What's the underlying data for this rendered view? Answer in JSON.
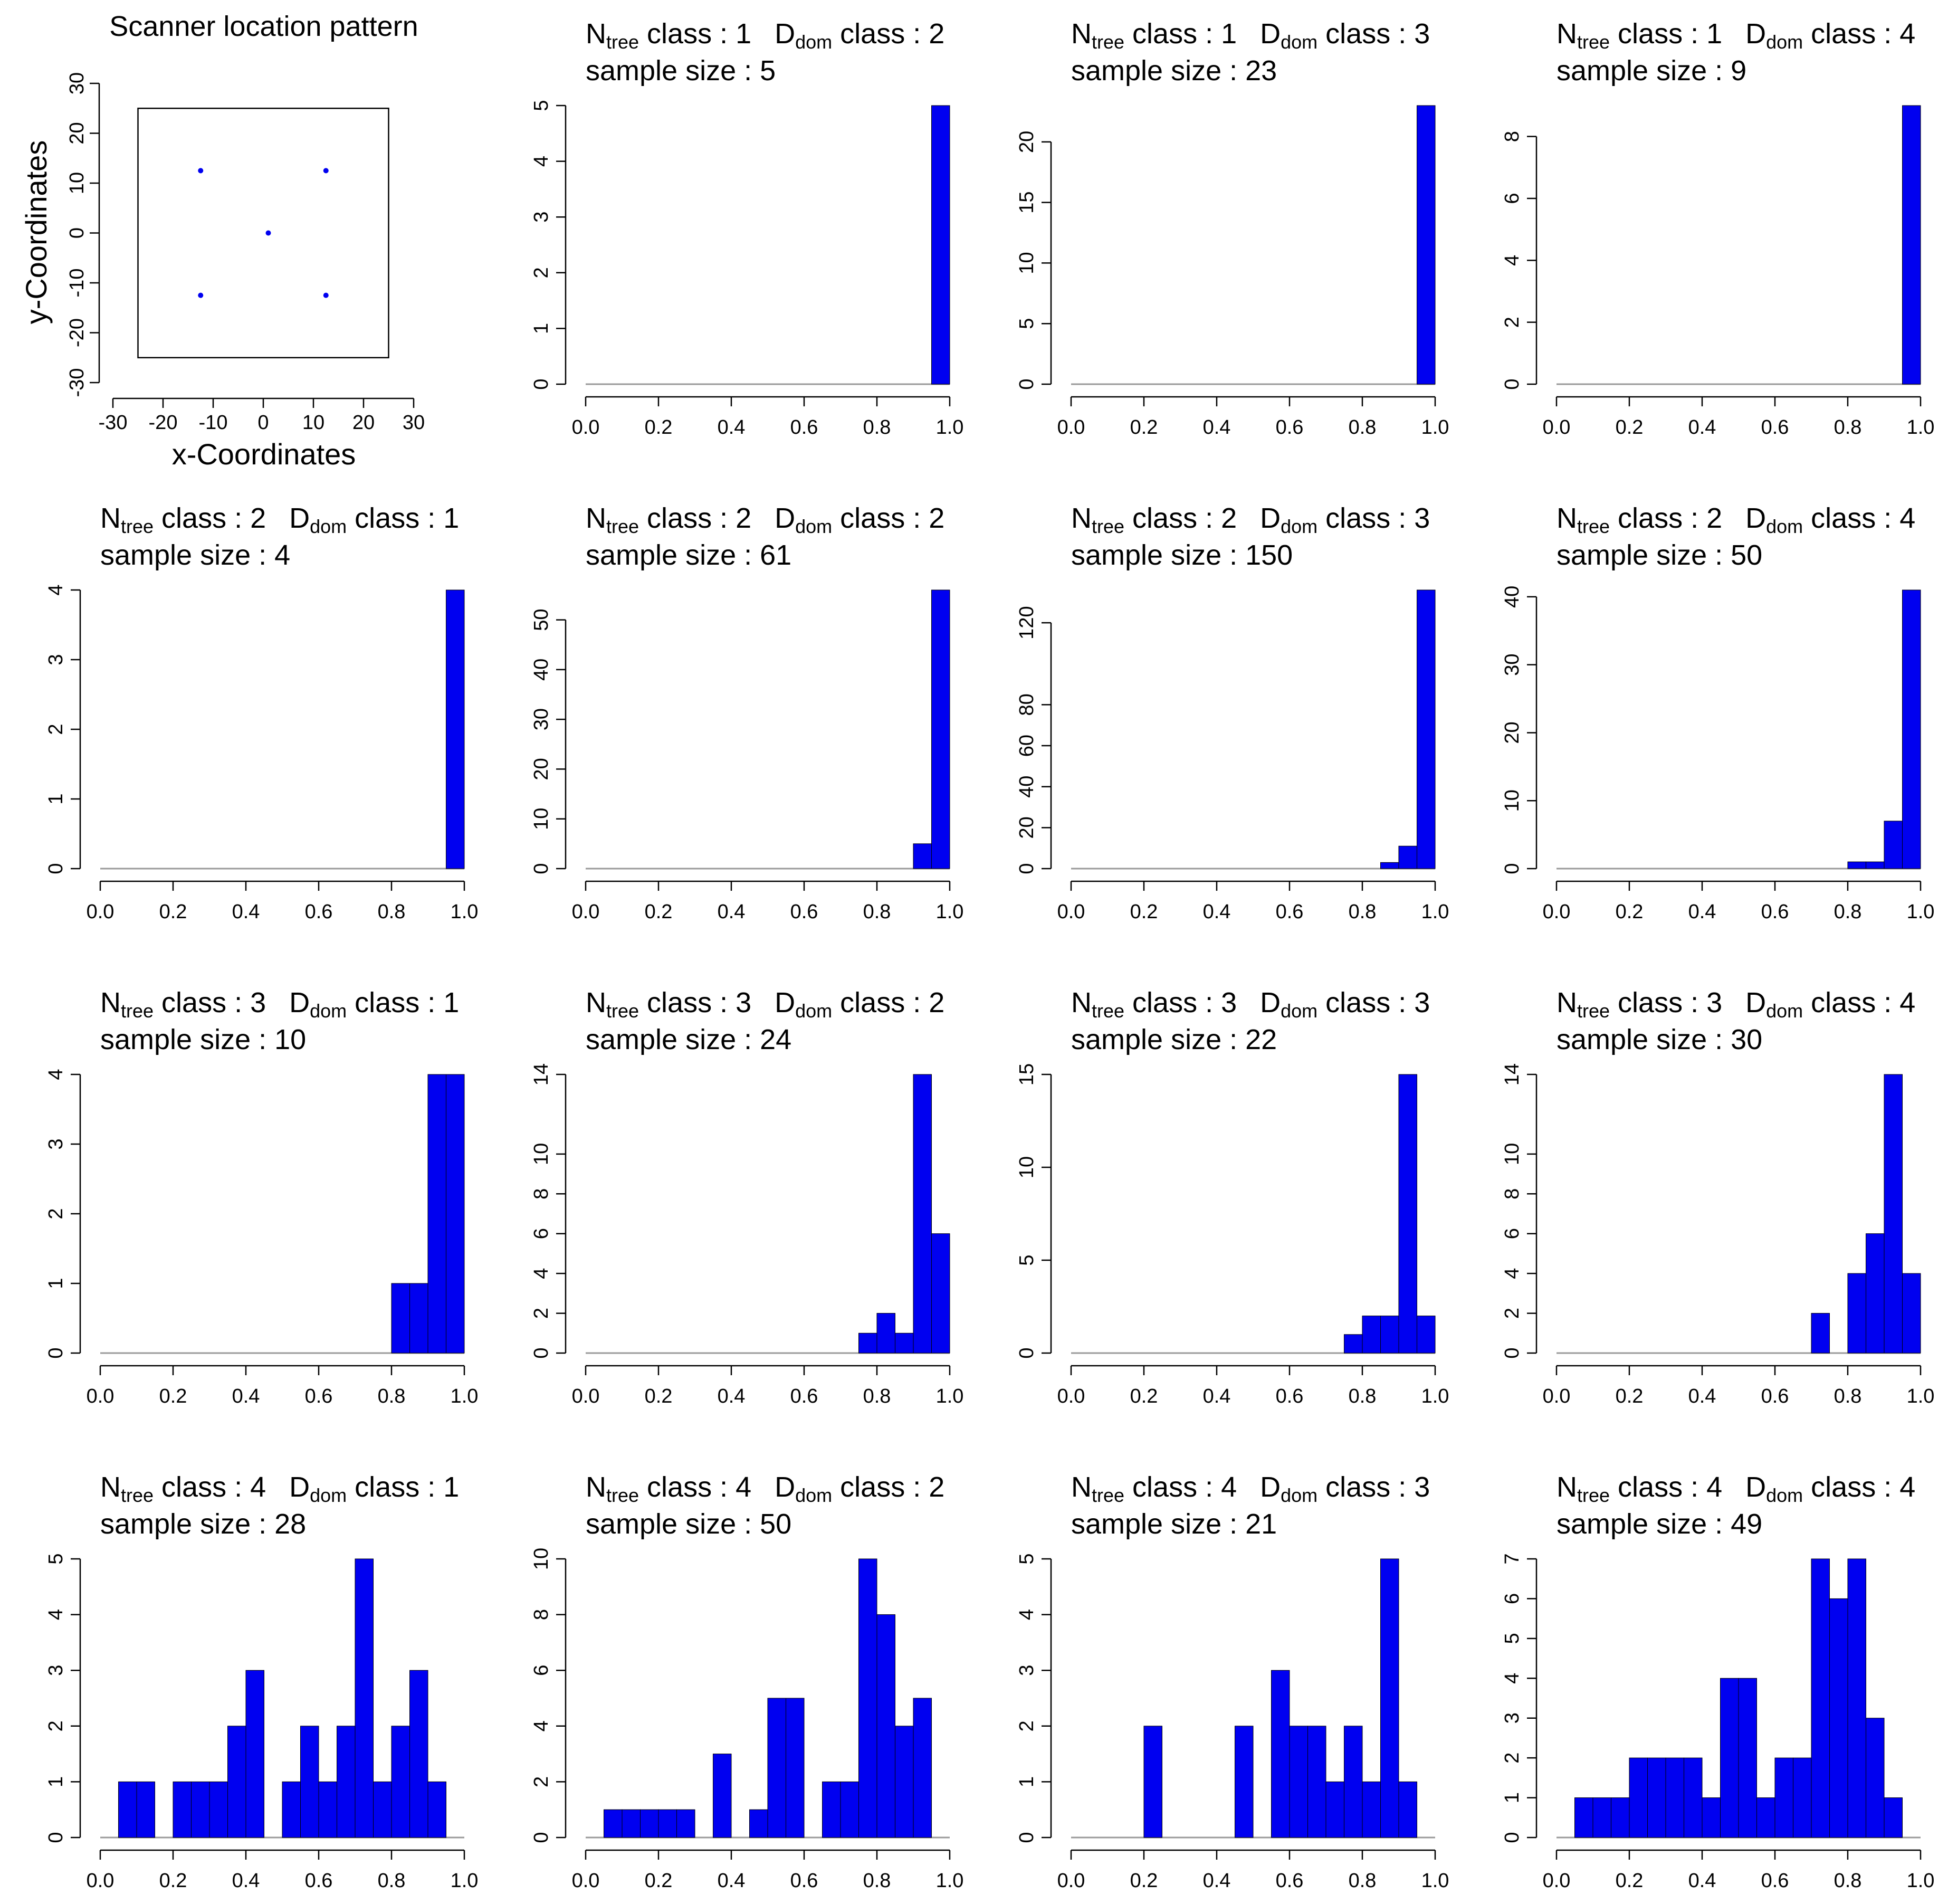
{
  "colors": {
    "bar": "#0000f0",
    "zero_line": "#9a9a9a",
    "point": "#0000f0"
  },
  "chart_data": [
    {
      "type": "scatter",
      "title": "Scanner location pattern",
      "xlabel": "x-Coordinates",
      "ylabel": "y-Coordinates",
      "xlim": [
        -30,
        30
      ],
      "ylim": [
        -30,
        30
      ],
      "x_ticks": [
        "-30",
        "-20",
        "-10",
        "0",
        "10",
        "20",
        "30"
      ],
      "y_ticks": [
        "-30",
        "-20",
        "-10",
        "0",
        "10",
        "20",
        "30"
      ],
      "plot_region": [
        -25,
        25,
        -25,
        25
      ],
      "points": [
        {
          "x": -12.5,
          "y": 12.5
        },
        {
          "x": 12.5,
          "y": 12.5
        },
        {
          "x": 1,
          "y": 0
        },
        {
          "x": -12.5,
          "y": -12.5
        },
        {
          "x": 12.5,
          "y": -12.5
        }
      ]
    },
    {
      "type": "bar",
      "ntree_label": "N",
      "ntree_sub": "tree",
      "dom_label": "D",
      "dom_sub": "dom",
      "class_text": " class :",
      "ntree": "1",
      "ddom": "2",
      "sample_label": "sample size :",
      "sample_size": "5",
      "ymax": 5,
      "y_ticks": [
        "0",
        "1",
        "2",
        "3",
        "4",
        "5"
      ],
      "x_ticks": [
        "0.0",
        "0.2",
        "0.4",
        "0.6",
        "0.8",
        "1.0"
      ],
      "xlim": [
        0,
        1
      ],
      "bin_width": 0.05,
      "bars": [
        {
          "x0": 0.95,
          "count": 5
        }
      ]
    },
    {
      "type": "bar",
      "ntree_label": "N",
      "ntree_sub": "tree",
      "dom_label": "D",
      "dom_sub": "dom",
      "class_text": " class :",
      "ntree": "1",
      "ddom": "3",
      "sample_label": "sample size :",
      "sample_size": "23",
      "ymax": 23,
      "y_ticks": [
        "0",
        "5",
        "10",
        "15",
        "20"
      ],
      "x_ticks": [
        "0.0",
        "0.2",
        "0.4",
        "0.6",
        "0.8",
        "1.0"
      ],
      "xlim": [
        0,
        1
      ],
      "bin_width": 0.05,
      "bars": [
        {
          "x0": 0.95,
          "count": 23
        }
      ]
    },
    {
      "type": "bar",
      "ntree_label": "N",
      "ntree_sub": "tree",
      "dom_label": "D",
      "dom_sub": "dom",
      "class_text": " class :",
      "ntree": "1",
      "ddom": "4",
      "sample_label": "sample size :",
      "sample_size": "9",
      "ymax": 9,
      "y_ticks": [
        "0",
        "2",
        "4",
        "6",
        "8"
      ],
      "x_ticks": [
        "0.0",
        "0.2",
        "0.4",
        "0.6",
        "0.8",
        "1.0"
      ],
      "xlim": [
        0,
        1
      ],
      "bin_width": 0.05,
      "bars": [
        {
          "x0": 0.95,
          "count": 9
        }
      ]
    },
    {
      "type": "bar",
      "ntree_label": "N",
      "ntree_sub": "tree",
      "dom_label": "D",
      "dom_sub": "dom",
      "class_text": " class :",
      "ntree": "2",
      "ddom": "1",
      "sample_label": "sample size :",
      "sample_size": "4",
      "ymax": 4,
      "y_ticks": [
        "0",
        "1",
        "2",
        "3",
        "4"
      ],
      "x_ticks": [
        "0.0",
        "0.2",
        "0.4",
        "0.6",
        "0.8",
        "1.0"
      ],
      "xlim": [
        0,
        1
      ],
      "bin_width": 0.05,
      "bars": [
        {
          "x0": 0.95,
          "count": 4
        }
      ]
    },
    {
      "type": "bar",
      "ntree_label": "N",
      "ntree_sub": "tree",
      "dom_label": "D",
      "dom_sub": "dom",
      "class_text": " class :",
      "ntree": "2",
      "ddom": "2",
      "sample_label": "sample size :",
      "sample_size": "61",
      "ymax": 56,
      "y_ticks": [
        "0",
        "10",
        "20",
        "30",
        "40",
        "50"
      ],
      "x_ticks": [
        "0.0",
        "0.2",
        "0.4",
        "0.6",
        "0.8",
        "1.0"
      ],
      "xlim": [
        0,
        1
      ],
      "bin_width": 0.05,
      "bars": [
        {
          "x0": 0.9,
          "count": 5
        },
        {
          "x0": 0.95,
          "count": 56
        }
      ]
    },
    {
      "type": "bar",
      "ntree_label": "N",
      "ntree_sub": "tree",
      "dom_label": "D",
      "dom_sub": "dom",
      "class_text": " class :",
      "ntree": "2",
      "ddom": "3",
      "sample_label": "sample size :",
      "sample_size": "150",
      "ymax": 136,
      "y_ticks": [
        "0",
        "20",
        "40",
        "60",
        "80",
        "120"
      ],
      "y_tick_values": [
        0,
        20,
        40,
        60,
        80,
        120
      ],
      "x_ticks": [
        "0.0",
        "0.2",
        "0.4",
        "0.6",
        "0.8",
        "1.0"
      ],
      "xlim": [
        0,
        1
      ],
      "bin_width": 0.05,
      "bars": [
        {
          "x0": 0.85,
          "count": 3
        },
        {
          "x0": 0.9,
          "count": 11
        },
        {
          "x0": 0.95,
          "count": 136
        }
      ]
    },
    {
      "type": "bar",
      "ntree_label": "N",
      "ntree_sub": "tree",
      "dom_label": "D",
      "dom_sub": "dom",
      "class_text": " class :",
      "ntree": "2",
      "ddom": "4",
      "sample_label": "sample size :",
      "sample_size": "50",
      "ymax": 41,
      "y_ticks": [
        "0",
        "10",
        "20",
        "30",
        "40"
      ],
      "x_ticks": [
        "0.0",
        "0.2",
        "0.4",
        "0.6",
        "0.8",
        "1.0"
      ],
      "xlim": [
        0,
        1
      ],
      "bin_width": 0.05,
      "bars": [
        {
          "x0": 0.8,
          "count": 1
        },
        {
          "x0": 0.85,
          "count": 1
        },
        {
          "x0": 0.9,
          "count": 7
        },
        {
          "x0": 0.95,
          "count": 41
        }
      ]
    },
    {
      "type": "bar",
      "ntree_label": "N",
      "ntree_sub": "tree",
      "dom_label": "D",
      "dom_sub": "dom",
      "class_text": " class :",
      "ntree": "3",
      "ddom": "1",
      "sample_label": "sample size :",
      "sample_size": "10",
      "ymax": 4,
      "y_ticks": [
        "0",
        "1",
        "2",
        "3",
        "4"
      ],
      "x_ticks": [
        "0.0",
        "0.2",
        "0.4",
        "0.6",
        "0.8",
        "1.0"
      ],
      "xlim": [
        0,
        1
      ],
      "bin_width": 0.05,
      "bars": [
        {
          "x0": 0.8,
          "count": 1
        },
        {
          "x0": 0.85,
          "count": 1
        },
        {
          "x0": 0.9,
          "count": 4
        },
        {
          "x0": 0.95,
          "count": 4
        }
      ]
    },
    {
      "type": "bar",
      "ntree_label": "N",
      "ntree_sub": "tree",
      "dom_label": "D",
      "dom_sub": "dom",
      "class_text": " class :",
      "ntree": "3",
      "ddom": "2",
      "sample_label": "sample size :",
      "sample_size": "24",
      "ymax": 14,
      "y_ticks": [
        "0",
        "2",
        "4",
        "6",
        "8",
        "10",
        "14"
      ],
      "y_tick_values": [
        0,
        2,
        4,
        6,
        8,
        10,
        14
      ],
      "x_ticks": [
        "0.0",
        "0.2",
        "0.4",
        "0.6",
        "0.8",
        "1.0"
      ],
      "xlim": [
        0,
        1
      ],
      "bin_width": 0.05,
      "bars": [
        {
          "x0": 0.75,
          "count": 1
        },
        {
          "x0": 0.8,
          "count": 2
        },
        {
          "x0": 0.85,
          "count": 1
        },
        {
          "x0": 0.9,
          "count": 14
        },
        {
          "x0": 0.95,
          "count": 6
        }
      ]
    },
    {
      "type": "bar",
      "ntree_label": "N",
      "ntree_sub": "tree",
      "dom_label": "D",
      "dom_sub": "dom",
      "class_text": " class :",
      "ntree": "3",
      "ddom": "3",
      "sample_label": "sample size :",
      "sample_size": "22",
      "ymax": 15,
      "y_ticks": [
        "0",
        "5",
        "10",
        "15"
      ],
      "x_ticks": [
        "0.0",
        "0.2",
        "0.4",
        "0.6",
        "0.8",
        "1.0"
      ],
      "xlim": [
        0,
        1
      ],
      "bin_width": 0.05,
      "bars": [
        {
          "x0": 0.75,
          "count": 1
        },
        {
          "x0": 0.8,
          "count": 2
        },
        {
          "x0": 0.85,
          "count": 2
        },
        {
          "x0": 0.9,
          "count": 15
        },
        {
          "x0": 0.95,
          "count": 2
        }
      ]
    },
    {
      "type": "bar",
      "ntree_label": "N",
      "ntree_sub": "tree",
      "dom_label": "D",
      "dom_sub": "dom",
      "class_text": " class :",
      "ntree": "3",
      "ddom": "4",
      "sample_label": "sample size :",
      "sample_size": "30",
      "ymax": 14,
      "y_ticks": [
        "0",
        "2",
        "4",
        "6",
        "8",
        "10",
        "14"
      ],
      "y_tick_values": [
        0,
        2,
        4,
        6,
        8,
        10,
        14
      ],
      "x_ticks": [
        "0.0",
        "0.2",
        "0.4",
        "0.6",
        "0.8",
        "1.0"
      ],
      "xlim": [
        0,
        1
      ],
      "bin_width": 0.05,
      "bars": [
        {
          "x0": 0.7,
          "count": 2
        },
        {
          "x0": 0.8,
          "count": 4
        },
        {
          "x0": 0.85,
          "count": 6
        },
        {
          "x0": 0.9,
          "count": 14
        },
        {
          "x0": 0.95,
          "count": 4
        }
      ]
    },
    {
      "type": "bar",
      "ntree_label": "N",
      "ntree_sub": "tree",
      "dom_label": "D",
      "dom_sub": "dom",
      "class_text": " class :",
      "ntree": "4",
      "ddom": "1",
      "sample_label": "sample size :",
      "sample_size": "28",
      "ymax": 5,
      "y_ticks": [
        "0",
        "1",
        "2",
        "3",
        "4",
        "5"
      ],
      "x_ticks": [
        "0.0",
        "0.2",
        "0.4",
        "0.6",
        "0.8",
        "1.0"
      ],
      "xlim": [
        0,
        1
      ],
      "bin_width": 0.05,
      "bars": [
        {
          "x0": 0.05,
          "count": 1
        },
        {
          "x0": 0.1,
          "count": 1
        },
        {
          "x0": 0.2,
          "count": 1
        },
        {
          "x0": 0.25,
          "count": 1
        },
        {
          "x0": 0.3,
          "count": 1
        },
        {
          "x0": 0.35,
          "count": 2
        },
        {
          "x0": 0.4,
          "count": 3
        },
        {
          "x0": 0.5,
          "count": 1
        },
        {
          "x0": 0.55,
          "count": 2
        },
        {
          "x0": 0.6,
          "count": 1
        },
        {
          "x0": 0.65,
          "count": 2
        },
        {
          "x0": 0.7,
          "count": 5
        },
        {
          "x0": 0.75,
          "count": 1
        },
        {
          "x0": 0.8,
          "count": 2
        },
        {
          "x0": 0.85,
          "count": 3
        },
        {
          "x0": 0.9,
          "count": 1
        }
      ]
    },
    {
      "type": "bar",
      "ntree_label": "N",
      "ntree_sub": "tree",
      "dom_label": "D",
      "dom_sub": "dom",
      "class_text": " class :",
      "ntree": "4",
      "ddom": "2",
      "sample_label": "sample size :",
      "sample_size": "50",
      "ymax": 10,
      "y_ticks": [
        "0",
        "2",
        "4",
        "6",
        "8",
        "10"
      ],
      "x_ticks": [
        "0.0",
        "0.2",
        "0.4",
        "0.6",
        "0.8",
        "1.0"
      ],
      "xlim": [
        0,
        1
      ],
      "bin_width": 0.05,
      "bars": [
        {
          "x0": 0.05,
          "count": 1
        },
        {
          "x0": 0.1,
          "count": 1
        },
        {
          "x0": 0.15,
          "count": 1
        },
        {
          "x0": 0.2,
          "count": 1
        },
        {
          "x0": 0.25,
          "count": 1
        },
        {
          "x0": 0.35,
          "count": 3
        },
        {
          "x0": 0.45,
          "count": 1
        },
        {
          "x0": 0.5,
          "count": 5
        },
        {
          "x0": 0.55,
          "count": 5
        },
        {
          "x0": 0.65,
          "count": 2
        },
        {
          "x0": 0.7,
          "count": 2
        },
        {
          "x0": 0.75,
          "count": 10
        },
        {
          "x0": 0.8,
          "count": 8
        },
        {
          "x0": 0.85,
          "count": 4
        },
        {
          "x0": 0.9,
          "count": 5
        }
      ]
    },
    {
      "type": "bar",
      "ntree_label": "N",
      "ntree_sub": "tree",
      "dom_label": "D",
      "dom_sub": "dom",
      "class_text": " class :",
      "ntree": "4",
      "ddom": "3",
      "sample_label": "sample size :",
      "sample_size": "21",
      "ymax": 5,
      "y_ticks": [
        "0",
        "1",
        "2",
        "3",
        "4",
        "5"
      ],
      "x_ticks": [
        "0.0",
        "0.2",
        "0.4",
        "0.6",
        "0.8",
        "1.0"
      ],
      "xlim": [
        0,
        1
      ],
      "bin_width": 0.05,
      "bars": [
        {
          "x0": 0.2,
          "count": 2
        },
        {
          "x0": 0.45,
          "count": 2
        },
        {
          "x0": 0.55,
          "count": 3
        },
        {
          "x0": 0.6,
          "count": 2
        },
        {
          "x0": 0.65,
          "count": 2
        },
        {
          "x0": 0.7,
          "count": 1
        },
        {
          "x0": 0.75,
          "count": 2
        },
        {
          "x0": 0.8,
          "count": 1
        },
        {
          "x0": 0.85,
          "count": 5
        },
        {
          "x0": 0.9,
          "count": 1
        }
      ]
    },
    {
      "type": "bar",
      "ntree_label": "N",
      "ntree_sub": "tree",
      "dom_label": "D",
      "dom_sub": "dom",
      "class_text": " class :",
      "ntree": "4",
      "ddom": "4",
      "sample_label": "sample size :",
      "sample_size": "49",
      "ymax": 7,
      "y_ticks": [
        "0",
        "1",
        "2",
        "3",
        "4",
        "5",
        "6",
        "7"
      ],
      "x_ticks": [
        "0.0",
        "0.2",
        "0.4",
        "0.6",
        "0.8",
        "1.0"
      ],
      "xlim": [
        0,
        1
      ],
      "bin_width": 0.05,
      "bars": [
        {
          "x0": 0.05,
          "count": 1
        },
        {
          "x0": 0.1,
          "count": 1
        },
        {
          "x0": 0.15,
          "count": 1
        },
        {
          "x0": 0.2,
          "count": 2
        },
        {
          "x0": 0.25,
          "count": 2
        },
        {
          "x0": 0.3,
          "count": 2
        },
        {
          "x0": 0.35,
          "count": 2
        },
        {
          "x0": 0.4,
          "count": 1
        },
        {
          "x0": 0.45,
          "count": 4
        },
        {
          "x0": 0.5,
          "count": 4
        },
        {
          "x0": 0.55,
          "count": 1
        },
        {
          "x0": 0.6,
          "count": 2
        },
        {
          "x0": 0.65,
          "count": 2
        },
        {
          "x0": 0.7,
          "count": 7
        },
        {
          "x0": 0.75,
          "count": 6
        },
        {
          "x0": 0.8,
          "count": 7
        },
        {
          "x0": 0.85,
          "count": 3
        },
        {
          "x0": 0.9,
          "count": 1
        }
      ]
    }
  ]
}
